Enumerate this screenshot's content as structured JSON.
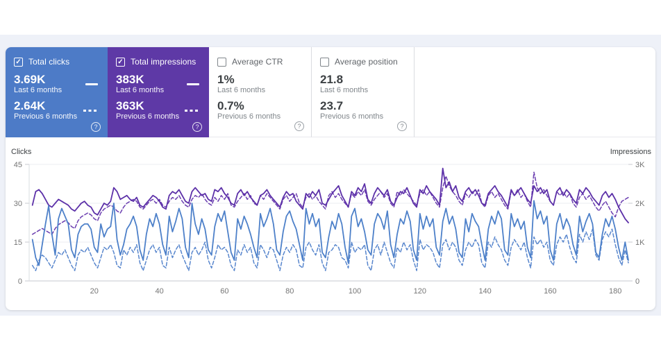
{
  "icons": {
    "check": "✓",
    "help": "?"
  },
  "captions": {
    "last": "Last 6 months",
    "prev": "Previous 6 months"
  },
  "cards": [
    {
      "label": "Total clicks",
      "checked": true,
      "value_last": "3.69K",
      "value_prev": "2.64K",
      "bg": "#4d7bc7"
    },
    {
      "label": "Total impressions",
      "checked": true,
      "value_last": "383K",
      "value_prev": "363K",
      "bg": "#5e39a6"
    },
    {
      "label": "Average CTR",
      "checked": false,
      "value_last": "1%",
      "value_prev": "0.7%"
    },
    {
      "label": "Average position",
      "checked": false,
      "value_last": "21.8",
      "value_prev": "23.7"
    }
  ],
  "chart_data": {
    "type": "line",
    "grid": true,
    "legend_position": "none (metric cards act as legend)",
    "x_range": [
      0,
      184
    ],
    "x_ticks": [
      "20",
      "40",
      "60",
      "80",
      "100",
      "120",
      "140",
      "160",
      "180"
    ],
    "left_axis": {
      "title": "Clicks",
      "ticks": [
        "45",
        "30",
        "15",
        "0"
      ],
      "min": 0,
      "max": 45
    },
    "right_axis": {
      "title": "Impressions",
      "ticks": [
        "3K",
        "2K",
        "1K",
        "0"
      ],
      "min": 0,
      "max": 3,
      "unit": "thousands"
    },
    "series": [
      {
        "id": "impressions-previous",
        "name": "Total impressions — Previous 6 months",
        "axis": "right",
        "style": "dashed",
        "color": "#6b3eb0",
        "values": [
          1.2,
          1.25,
          1.3,
          1.35,
          1.3,
          1.25,
          1.2,
          1.35,
          1.45,
          1.5,
          1.55,
          1.5,
          1.4,
          1.35,
          1.55,
          1.65,
          1.7,
          1.75,
          1.7,
          1.6,
          1.55,
          1.75,
          1.85,
          1.9,
          1.95,
          1.9,
          1.8,
          1.75,
          1.9,
          2.0,
          2.05,
          2.1,
          2.05,
          1.9,
          1.85,
          1.95,
          2.05,
          2.1,
          2.0,
          2.1,
          1.95,
          1.9,
          2.05,
          2.15,
          2.1,
          2.2,
          2.05,
          1.95,
          1.9,
          2.1,
          2.2,
          2.15,
          2.25,
          2.1,
          2.0,
          1.95,
          2.15,
          2.05,
          2.2,
          2.1,
          2.25,
          1.95,
          1.9,
          2.05,
          2.15,
          2.25,
          2.1,
          2.2,
          2.0,
          1.95,
          2.2,
          2.1,
          2.25,
          2.15,
          2.05,
          1.95,
          1.85,
          2.1,
          2.2,
          2.05,
          2.15,
          2.25,
          2.0,
          1.9,
          2.15,
          2.25,
          2.1,
          2.2,
          2.05,
          1.95,
          1.85,
          2.2,
          2.3,
          2.15,
          2.25,
          2.1,
          2.0,
          1.9,
          2.25,
          2.15,
          2.3,
          2.2,
          2.35,
          2.05,
          1.95,
          2.1,
          2.2,
          2.3,
          2.15,
          2.25,
          2.0,
          1.9,
          2.3,
          2.2,
          2.35,
          2.25,
          2.15,
          2.05,
          1.95,
          2.25,
          2.35,
          2.2,
          2.3,
          2.15,
          2.0,
          1.9,
          2.4,
          2.7,
          2.45,
          2.3,
          2.2,
          2.05,
          1.95,
          2.25,
          2.15,
          2.3,
          2.2,
          2.35,
          2.0,
          1.9,
          2.2,
          2.3,
          2.15,
          2.25,
          2.1,
          1.95,
          1.85,
          2.3,
          2.2,
          2.35,
          2.15,
          2.25,
          2.05,
          1.9,
          2.8,
          2.4,
          2.25,
          2.35,
          2.2,
          2.05,
          1.95,
          2.3,
          2.2,
          2.3,
          2.15,
          2.25,
          2.0,
          1.9,
          2.15,
          2.25,
          2.1,
          2.2,
          2.05,
          1.9,
          1.8,
          1.95,
          2.05,
          1.9,
          1.75,
          1.65,
          1.9,
          2.05,
          2.1,
          2.15
        ]
      },
      {
        "id": "impressions-last",
        "name": "Total impressions — Last 6 months",
        "axis": "right",
        "style": "solid",
        "color": "#5c30a8",
        "values": [
          1.95,
          2.3,
          2.35,
          2.25,
          2.1,
          1.95,
          1.9,
          2.0,
          2.1,
          2.05,
          2.0,
          1.95,
          1.85,
          1.8,
          1.9,
          2.0,
          2.05,
          1.95,
          1.9,
          1.75,
          1.7,
          1.85,
          2.0,
          1.95,
          2.05,
          2.4,
          2.3,
          2.1,
          2.15,
          2.2,
          2.1,
          2.05,
          2.15,
          1.95,
          1.9,
          2.0,
          2.1,
          2.2,
          2.15,
          2.05,
          1.9,
          1.85,
          2.2,
          2.3,
          2.25,
          2.35,
          2.2,
          2.05,
          2.0,
          2.3,
          2.4,
          2.3,
          2.2,
          2.25,
          2.1,
          2.05,
          2.35,
          2.3,
          2.4,
          2.25,
          2.15,
          2.0,
          1.95,
          2.25,
          2.35,
          2.2,
          2.3,
          2.15,
          2.05,
          1.95,
          2.2,
          2.25,
          2.35,
          2.2,
          2.1,
          2.0,
          1.9,
          2.15,
          2.3,
          2.2,
          2.25,
          2.05,
          1.95,
          1.85,
          2.25,
          2.15,
          2.3,
          2.2,
          2.35,
          2.0,
          1.95,
          2.1,
          2.25,
          2.35,
          2.45,
          2.2,
          2.05,
          1.9,
          2.3,
          2.2,
          2.4,
          2.3,
          2.5,
          2.1,
          2.0,
          2.25,
          2.4,
          2.3,
          2.2,
          2.35,
          2.05,
          1.95,
          2.15,
          2.3,
          2.25,
          2.4,
          2.2,
          2.0,
          1.9,
          2.35,
          2.25,
          2.45,
          2.3,
          2.2,
          2.1,
          1.95,
          2.9,
          2.4,
          2.55,
          2.3,
          2.45,
          2.15,
          2.05,
          2.3,
          2.4,
          2.25,
          2.35,
          2.2,
          2.0,
          1.95,
          2.25,
          2.35,
          2.45,
          2.3,
          2.2,
          2.05,
          1.9,
          2.35,
          2.2,
          2.3,
          2.4,
          2.25,
          2.1,
          2.0,
          2.45,
          2.3,
          2.4,
          2.25,
          2.35,
          2.05,
          1.95,
          2.3,
          2.4,
          2.2,
          2.35,
          2.25,
          2.1,
          2.0,
          2.35,
          2.25,
          2.4,
          2.3,
          2.15,
          2.05,
          1.95,
          2.2,
          2.3,
          2.15,
          2.25,
          2.1,
          1.9,
          1.75,
          1.6,
          1.5
        ]
      },
      {
        "id": "clicks-previous",
        "name": "Total clicks — Previous 6 months",
        "axis": "left",
        "style": "dashed",
        "color": "#5886cd",
        "values": [
          6,
          4,
          8,
          10,
          9,
          7,
          5,
          8,
          11,
          10,
          12,
          9,
          6,
          4,
          10,
          12,
          11,
          13,
          10,
          7,
          5,
          9,
          13,
          12,
          14,
          11,
          6,
          5,
          12,
          10,
          13,
          11,
          14,
          7,
          4,
          8,
          12,
          14,
          11,
          13,
          6,
          5,
          13,
          9,
          12,
          14,
          10,
          7,
          4,
          11,
          13,
          10,
          12,
          15,
          8,
          5,
          9,
          14,
          12,
          13,
          11,
          6,
          4,
          12,
          10,
          14,
          11,
          13,
          7,
          5,
          14,
          12,
          9,
          13,
          12,
          8,
          4,
          10,
          13,
          11,
          14,
          12,
          6,
          5,
          13,
          15,
          12,
          10,
          14,
          7,
          4,
          11,
          12,
          14,
          13,
          9,
          8,
          5,
          15,
          11,
          13,
          12,
          14,
          6,
          4,
          12,
          14,
          10,
          15,
          11,
          7,
          5,
          13,
          11,
          15,
          12,
          14,
          8,
          4,
          16,
          12,
          14,
          13,
          11,
          7,
          5,
          14,
          16,
          12,
          15,
          13,
          8,
          6,
          12,
          15,
          13,
          16,
          14,
          7,
          5,
          15,
          13,
          17,
          14,
          12,
          8,
          6,
          13,
          16,
          14,
          12,
          15,
          9,
          5,
          17,
          14,
          16,
          13,
          15,
          8,
          6,
          14,
          17,
          15,
          18,
          13,
          9,
          7,
          18,
          15,
          19,
          16,
          20,
          10,
          8,
          16,
          19,
          17,
          20,
          14,
          9,
          6,
          12,
          7
        ]
      },
      {
        "id": "clicks-last",
        "name": "Total clicks — Last 6 months",
        "axis": "left",
        "style": "solid",
        "color": "#4d80c9",
        "values": [
          16,
          9,
          6,
          14,
          22,
          29,
          18,
          10,
          24,
          28,
          25,
          22,
          12,
          9,
          18,
          21,
          22,
          22,
          20,
          13,
          11,
          22,
          17,
          20,
          21,
          30,
          16,
          10,
          14,
          20,
          22,
          25,
          21,
          12,
          8,
          18,
          24,
          21,
          26,
          22,
          14,
          10,
          25,
          19,
          23,
          28,
          24,
          13,
          9,
          30,
          22,
          18,
          24,
          20,
          12,
          10,
          21,
          26,
          23,
          27,
          19,
          11,
          8,
          24,
          20,
          25,
          22,
          18,
          13,
          9,
          26,
          21,
          24,
          28,
          22,
          12,
          10,
          19,
          25,
          27,
          23,
          20,
          14,
          8,
          28,
          22,
          26,
          21,
          24,
          11,
          9,
          17,
          23,
          20,
          26,
          22,
          13,
          7,
          25,
          28,
          21,
          24,
          19,
          12,
          10,
          22,
          26,
          24,
          20,
          27,
          14,
          9,
          18,
          24,
          22,
          27,
          23,
          12,
          8,
          26,
          20,
          25,
          21,
          24,
          13,
          10,
          23,
          28,
          22,
          25,
          20,
          11,
          9,
          24,
          19,
          26,
          23,
          21,
          14,
          8,
          20,
          25,
          22,
          27,
          24,
          12,
          10,
          26,
          21,
          24,
          20,
          23,
          13,
          9,
          31,
          24,
          27,
          22,
          25,
          12,
          8,
          22,
          26,
          20,
          24,
          21,
          14,
          10,
          25,
          19,
          23,
          26,
          22,
          11,
          9,
          18,
          24,
          21,
          25,
          20,
          13,
          8,
          15,
          8
        ]
      }
    ]
  }
}
